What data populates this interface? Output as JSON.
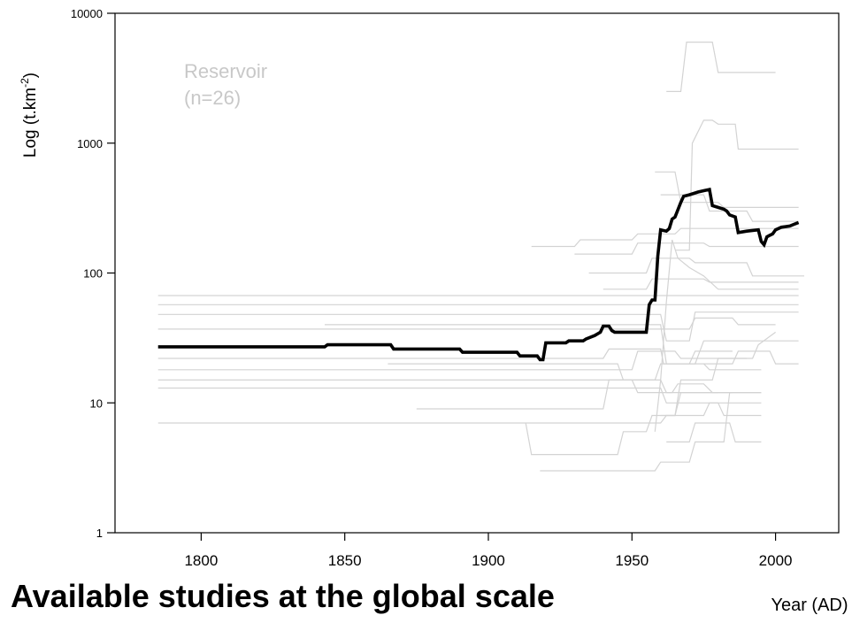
{
  "caption": "Available studies at the global scale",
  "chart_data": {
    "type": "line",
    "xlabel": "Year (AD)",
    "ylabel": "Log (t.km-2)",
    "ylabel_main": "Log (t.km",
    "ylabel_sup": "-2",
    "ylabel_close": ")",
    "xlim": [
      1770,
      2022
    ],
    "ylim": [
      1,
      10000
    ],
    "yscale": "log",
    "grid": false,
    "xticks": [
      "1800",
      "1850",
      "1900",
      "1950",
      "2000"
    ],
    "yticks": [
      "1",
      "10",
      "100",
      "1000",
      "10000"
    ],
    "annotation": {
      "line1": "Reservoir",
      "line2": "(n=26)"
    },
    "colors": {
      "mean": "#000000",
      "individual": "#d3d3d3",
      "annotation": "#c8c8c8"
    },
    "series": [
      {
        "role": "mean",
        "points": [
          [
            1785,
            27
          ],
          [
            1843,
            27
          ],
          [
            1844,
            28
          ],
          [
            1866,
            28
          ],
          [
            1867,
            26
          ],
          [
            1890,
            26
          ],
          [
            1891,
            24.5
          ],
          [
            1910,
            24.5
          ],
          [
            1911,
            23
          ],
          [
            1917,
            23
          ],
          [
            1918,
            21.5
          ],
          [
            1919,
            21.5
          ],
          [
            1920,
            29
          ],
          [
            1927,
            29
          ],
          [
            1928,
            30
          ],
          [
            1933,
            30
          ],
          [
            1934,
            31
          ],
          [
            1937,
            33
          ],
          [
            1939,
            35
          ],
          [
            1940,
            39
          ],
          [
            1942,
            39
          ],
          [
            1943,
            36
          ],
          [
            1944,
            35
          ],
          [
            1955,
            35
          ],
          [
            1956,
            57
          ],
          [
            1957,
            62
          ],
          [
            1958,
            62
          ],
          [
            1959,
            135
          ],
          [
            1960,
            215
          ],
          [
            1962,
            210
          ],
          [
            1963,
            220
          ],
          [
            1964,
            260
          ],
          [
            1965,
            270
          ],
          [
            1967,
            350
          ],
          [
            1968,
            390
          ],
          [
            1970,
            400
          ],
          [
            1973,
            420
          ],
          [
            1975,
            430
          ],
          [
            1977,
            440
          ],
          [
            1978,
            330
          ],
          [
            1980,
            320
          ],
          [
            1982,
            310
          ],
          [
            1983,
            300
          ],
          [
            1984,
            280
          ],
          [
            1986,
            270
          ],
          [
            1987,
            205
          ],
          [
            1990,
            210
          ],
          [
            1994,
            215
          ],
          [
            1995,
            175
          ],
          [
            1996,
            165
          ],
          [
            1997,
            190
          ],
          [
            1998,
            195
          ],
          [
            1999,
            200
          ],
          [
            2000,
            215
          ],
          [
            2002,
            225
          ],
          [
            2005,
            230
          ],
          [
            2006,
            235
          ],
          [
            2008,
            245
          ]
        ]
      },
      {
        "role": "individual",
        "points": [
          [
            1785,
            67
          ],
          [
            2008,
            67
          ]
        ]
      },
      {
        "role": "individual",
        "points": [
          [
            1785,
            57
          ],
          [
            2008,
            57
          ]
        ]
      },
      {
        "role": "individual",
        "points": [
          [
            1785,
            48
          ],
          [
            1960,
            48
          ],
          [
            1962,
            30
          ],
          [
            1970,
            30
          ],
          [
            1972,
            50
          ],
          [
            1990,
            50
          ],
          [
            2008,
            50
          ]
        ]
      },
      {
        "role": "individual",
        "points": [
          [
            1785,
            37
          ],
          [
            1970,
            37
          ],
          [
            1972,
            45
          ],
          [
            1985,
            45
          ],
          [
            1987,
            40
          ],
          [
            2000,
            40
          ]
        ]
      },
      {
        "role": "individual",
        "points": [
          [
            1785,
            22
          ],
          [
            1940,
            22
          ],
          [
            1942,
            26
          ],
          [
            1960,
            26
          ],
          [
            1961,
            20
          ],
          [
            1970,
            20
          ],
          [
            1972,
            25
          ],
          [
            1985,
            25
          ]
        ]
      },
      {
        "role": "individual",
        "points": [
          [
            1785,
            18
          ],
          [
            1950,
            18
          ],
          [
            1952,
            25
          ],
          [
            1965,
            25
          ],
          [
            1967,
            22
          ],
          [
            1990,
            22
          ]
        ]
      },
      {
        "role": "individual",
        "points": [
          [
            1785,
            15
          ],
          [
            1950,
            15
          ],
          [
            1952,
            12
          ],
          [
            1964,
            12
          ],
          [
            1966,
            14
          ],
          [
            1975,
            14
          ],
          [
            1978,
            12
          ],
          [
            1995,
            12
          ]
        ]
      },
      {
        "role": "individual",
        "points": [
          [
            1785,
            13
          ],
          [
            1960,
            13
          ],
          [
            1962,
            10
          ],
          [
            1980,
            10
          ],
          [
            1982,
            8
          ],
          [
            1995,
            8
          ]
        ]
      },
      {
        "role": "individual",
        "points": [
          [
            1785,
            7
          ],
          [
            1960,
            7
          ],
          [
            1962,
            8
          ],
          [
            1975,
            8
          ],
          [
            1977,
            10
          ],
          [
            1995,
            10
          ]
        ]
      },
      {
        "role": "individual",
        "points": [
          [
            1843,
            40
          ],
          [
            1960,
            40
          ],
          [
            1962,
            20
          ],
          [
            1975,
            20
          ],
          [
            1977,
            18
          ],
          [
            1995,
            18
          ]
        ]
      },
      {
        "role": "individual",
        "points": [
          [
            1865,
            20
          ],
          [
            1945,
            20
          ],
          [
            1947,
            15
          ],
          [
            1960,
            15
          ],
          [
            1962,
            12
          ],
          [
            1980,
            12
          ]
        ]
      },
      {
        "role": "individual",
        "points": [
          [
            1875,
            9
          ],
          [
            1940,
            9
          ],
          [
            1942,
            15
          ],
          [
            1958,
            15
          ],
          [
            1960,
            20
          ],
          [
            1972,
            20
          ],
          [
            1975,
            30
          ],
          [
            2008,
            30
          ]
        ]
      },
      {
        "role": "individual",
        "points": [
          [
            1913,
            7
          ],
          [
            1915,
            4
          ],
          [
            1945,
            4
          ],
          [
            1947,
            6
          ],
          [
            1955,
            6
          ],
          [
            1957,
            8
          ],
          [
            1965,
            8
          ],
          [
            1967,
            12
          ],
          [
            1985,
            12
          ]
        ]
      },
      {
        "role": "individual",
        "points": [
          [
            1918,
            3
          ],
          [
            1958,
            3
          ],
          [
            1960,
            3.5
          ],
          [
            1970,
            3.5
          ],
          [
            1972,
            5
          ],
          [
            1982,
            5
          ],
          [
            1984,
            12
          ],
          [
            1995,
            12
          ]
        ]
      },
      {
        "role": "individual",
        "points": [
          [
            1915,
            160
          ],
          [
            1930,
            160
          ],
          [
            1932,
            180
          ],
          [
            1950,
            180
          ],
          [
            1952,
            200
          ],
          [
            1965,
            200
          ],
          [
            1967,
            220
          ],
          [
            2008,
            220
          ]
        ]
      },
      {
        "role": "individual",
        "points": [
          [
            1930,
            140
          ],
          [
            1950,
            140
          ],
          [
            1952,
            170
          ],
          [
            1975,
            170
          ],
          [
            1977,
            160
          ],
          [
            2008,
            160
          ]
        ]
      },
      {
        "role": "individual",
        "points": [
          [
            1935,
            100
          ],
          [
            1955,
            100
          ],
          [
            1957,
            130
          ],
          [
            1970,
            130
          ],
          [
            1972,
            120
          ],
          [
            1990,
            120
          ],
          [
            1992,
            95
          ],
          [
            2010,
            95
          ]
        ]
      },
      {
        "role": "individual",
        "points": [
          [
            1940,
            75
          ],
          [
            1955,
            75
          ],
          [
            1957,
            90
          ],
          [
            1975,
            90
          ],
          [
            1977,
            85
          ],
          [
            2008,
            85
          ]
        ]
      },
      {
        "role": "individual",
        "points": [
          [
            1958,
            600
          ],
          [
            1965,
            600
          ],
          [
            1967,
            350
          ],
          [
            1980,
            350
          ],
          [
            1982,
            320
          ],
          [
            2008,
            320
          ]
        ]
      },
      {
        "role": "individual",
        "points": [
          [
            1962,
            2500
          ],
          [
            1967,
            2500
          ],
          [
            1969,
            6000
          ],
          [
            1978,
            6000
          ],
          [
            1980,
            3500
          ],
          [
            1995,
            3500
          ],
          [
            2000,
            3500
          ]
        ]
      },
      {
        "role": "individual",
        "points": [
          [
            1965,
            150
          ],
          [
            1970,
            150
          ],
          [
            1971,
            1000
          ],
          [
            1975,
            1500
          ],
          [
            1978,
            1500
          ],
          [
            1980,
            1400
          ],
          [
            1986,
            1400
          ],
          [
            1987,
            900
          ],
          [
            2008,
            900
          ]
        ]
      },
      {
        "role": "individual",
        "points": [
          [
            1960,
            400
          ],
          [
            1975,
            400
          ],
          [
            1977,
            300
          ],
          [
            1990,
            300
          ],
          [
            1992,
            250
          ],
          [
            2008,
            250
          ]
        ]
      },
      {
        "role": "individual",
        "points": [
          [
            1958,
            6
          ],
          [
            1960,
            15
          ],
          [
            1962,
            60
          ],
          [
            1964,
            180
          ],
          [
            1966,
            130
          ],
          [
            1970,
            110
          ],
          [
            1975,
            95
          ],
          [
            1980,
            75
          ],
          [
            2008,
            75
          ]
        ]
      },
      {
        "role": "individual",
        "points": [
          [
            1960,
            8
          ],
          [
            1965,
            8
          ],
          [
            1967,
            15
          ],
          [
            1978,
            15
          ],
          [
            1980,
            22
          ],
          [
            1992,
            22
          ],
          [
            1994,
            28
          ],
          [
            2000,
            35
          ]
        ]
      },
      {
        "role": "individual",
        "points": [
          [
            1962,
            5
          ],
          [
            1970,
            5
          ],
          [
            1972,
            7
          ],
          [
            1984,
            7
          ],
          [
            1986,
            5
          ],
          [
            1995,
            5
          ]
        ]
      },
      {
        "role": "individual",
        "points": [
          [
            1975,
            20
          ],
          [
            1985,
            20
          ],
          [
            1987,
            25
          ],
          [
            1998,
            25
          ],
          [
            2000,
            20
          ],
          [
            2008,
            20
          ]
        ]
      }
    ]
  }
}
